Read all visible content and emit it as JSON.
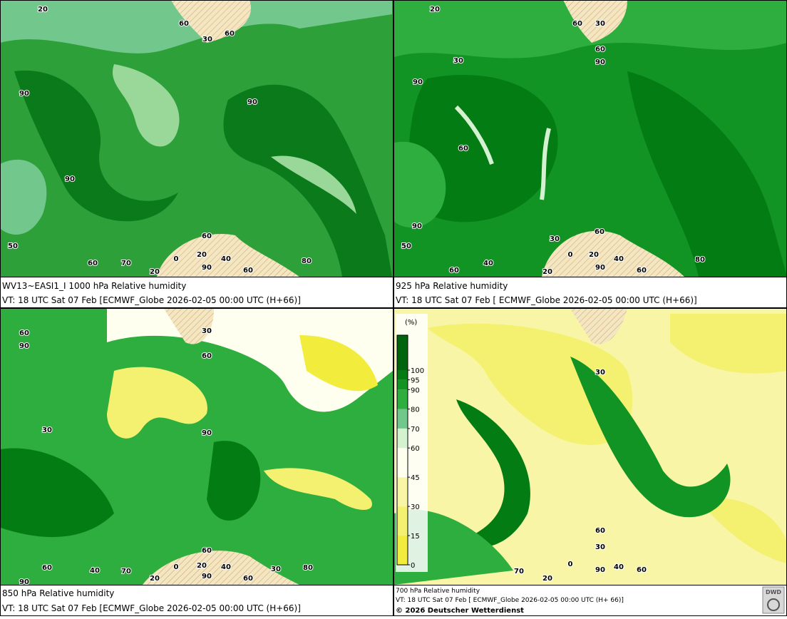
{
  "panels": [
    {
      "title": "WV13~EASI1_I 1000 hPa Relative humidity",
      "valid_time": "VT: 18 UTC Sat  07 Feb [ECMWF_Globe 2026-02-05 00:00 UTC  (H+66)]",
      "contour_labels": [
        "20",
        "60",
        "30",
        "60",
        "90",
        "90",
        "90",
        "60",
        "50",
        "0",
        "20",
        "40",
        "60",
        "70",
        "20",
        "90",
        "60",
        "80"
      ]
    },
    {
      "title": "925 hPa Relative humidity",
      "valid_time": "VT: 18 UTC Sat  07 Feb [ ECMWF_Globe 2026-02-05 00:00 UTC  (H+66)]",
      "contour_labels": [
        "20",
        "60",
        "30",
        "60",
        "90",
        "30",
        "90",
        "60",
        "90",
        "50",
        "30",
        "60",
        "0",
        "20",
        "40",
        "60",
        "40",
        "20",
        "90",
        "60",
        "80"
      ]
    },
    {
      "title": "850 hPa  Relative humidity",
      "valid_time": "VT: 18 UTC Sat  07 Feb [ECMWF_Globe 2026-02-05 00:00 UTC  (H+66)]",
      "contour_labels": [
        "60",
        "90",
        "30",
        "60",
        "30",
        "90",
        "60",
        "90",
        "60",
        "40",
        "70",
        "20",
        "0",
        "20",
        "40",
        "90",
        "60",
        "30",
        "80"
      ]
    },
    {
      "title": "700 hPa Relative humidity",
      "valid_time": "VT: 18 UTC Sat  07 Feb [ ECMWF_Globe 2026-02-05 00:00 UTC  (H+ 66)]",
      "contour_labels": [
        "30",
        "30",
        "60",
        "90",
        "70",
        "20",
        "40",
        "60",
        "0"
      ]
    }
  ],
  "legend": {
    "unit": "(%)",
    "levels": [
      0,
      15,
      30,
      45,
      60,
      70,
      80,
      90,
      95,
      100
    ],
    "colors": [
      "#f2ec3c",
      "#f4f070",
      "#f8f6a6",
      "#fffff0",
      "#d4f2d0",
      "#72c88c",
      "#2eae3e",
      "#129424",
      "#047c14",
      "#00640e"
    ]
  },
  "copyright": "© 2026 Deutscher Wetterdienst",
  "logo": "DWD"
}
